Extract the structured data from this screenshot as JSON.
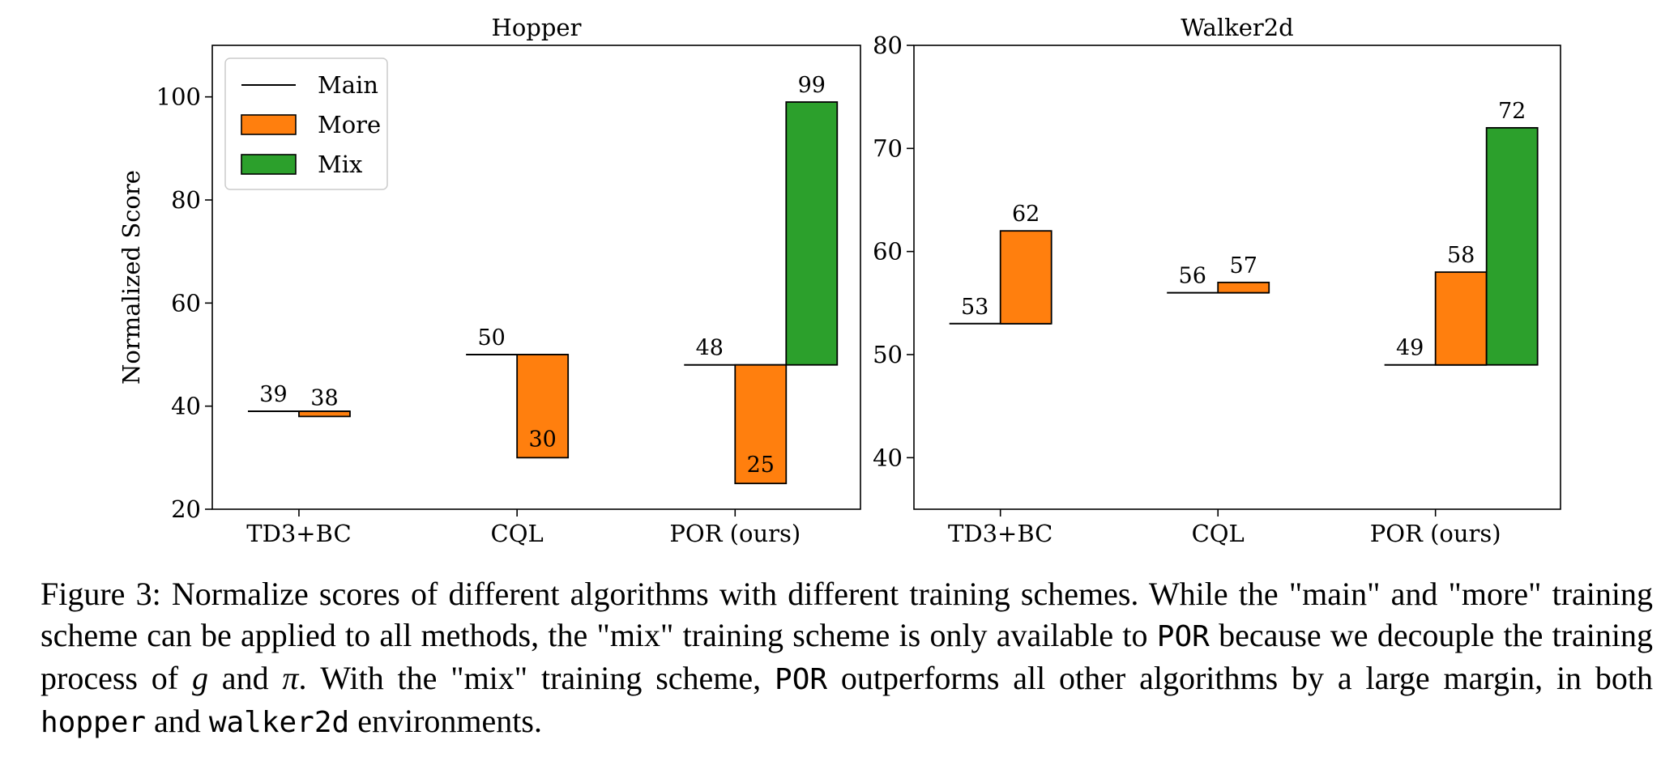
{
  "chart_data": [
    {
      "type": "bar",
      "title": "Hopper",
      "ylabel": "Normalized Score",
      "ylim": [
        20,
        110
      ],
      "yticks": [
        20,
        40,
        60,
        80,
        100
      ],
      "categories": [
        "TD3+BC",
        "CQL",
        "POR (ours)"
      ],
      "legend": {
        "placement": "top-left",
        "entries": [
          "Main",
          "More",
          "Mix"
        ]
      },
      "series": [
        {
          "name": "Main",
          "values": [
            39,
            50,
            48
          ]
        },
        {
          "name": "More",
          "values": [
            38,
            30,
            25
          ]
        },
        {
          "name": "Mix",
          "values": [
            null,
            null,
            99
          ]
        }
      ],
      "grid": false
    },
    {
      "type": "bar",
      "title": "Walker2d",
      "ylim": [
        35,
        80
      ],
      "yticks": [
        40,
        50,
        60,
        70,
        80
      ],
      "categories": [
        "TD3+BC",
        "CQL",
        "POR (ours)"
      ],
      "series": [
        {
          "name": "Main",
          "values": [
            53,
            56,
            49
          ]
        },
        {
          "name": "More",
          "values": [
            62,
            57,
            58
          ]
        },
        {
          "name": "Mix",
          "values": [
            null,
            null,
            72
          ]
        }
      ],
      "grid": false
    }
  ],
  "colors": {
    "main": "#000000",
    "more": "#ff7f0e",
    "mix": "#2ca02c"
  },
  "caption": {
    "part1": "Figure 3: Normalize scores of different algorithms with different training schemes. While the \"main\" and \"more\" training scheme can be applied to all methods, the \"mix\" training scheme is only available to ",
    "code1": "POR",
    "part2": " because we decouple the training process of ",
    "var_g": "g",
    "and": " and ",
    "var_pi": "π",
    "part3": ". With the \"mix\" training scheme, ",
    "code2": "POR",
    "part4": " outperforms all other algorithms by a large margin, in both ",
    "code3": "hopper",
    "and2": " and ",
    "code4": "walker2d",
    "part5": " environments."
  }
}
